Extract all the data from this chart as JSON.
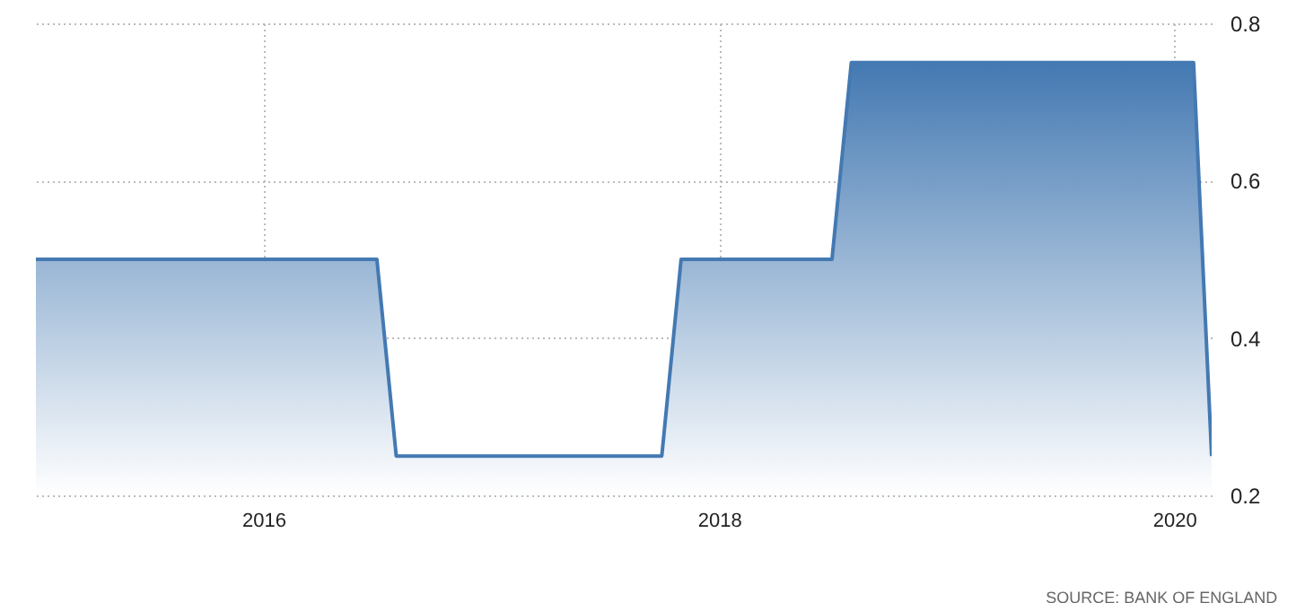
{
  "chart_data": {
    "type": "area",
    "x": [
      "2015-01",
      "2016-07",
      "2016-08",
      "2017-10",
      "2017-11",
      "2018-07",
      "2018-08",
      "2020-02",
      "2020-03"
    ],
    "values": [
      0.5,
      0.5,
      0.25,
      0.25,
      0.5,
      0.5,
      0.75,
      0.75,
      0.25
    ],
    "color": "#4479b2",
    "xlim": [
      "2015-01",
      "2020-03"
    ],
    "xticks": [
      "2016",
      "2018",
      "2020"
    ],
    "ylim": [
      0.2,
      0.8
    ],
    "yticks": [
      0.2,
      0.4,
      0.6,
      0.8
    ],
    "grid": true,
    "marker": "none",
    "line_style": "solid",
    "annotations": [
      "SOURCE: BANK OF ENGLAND"
    ]
  }
}
